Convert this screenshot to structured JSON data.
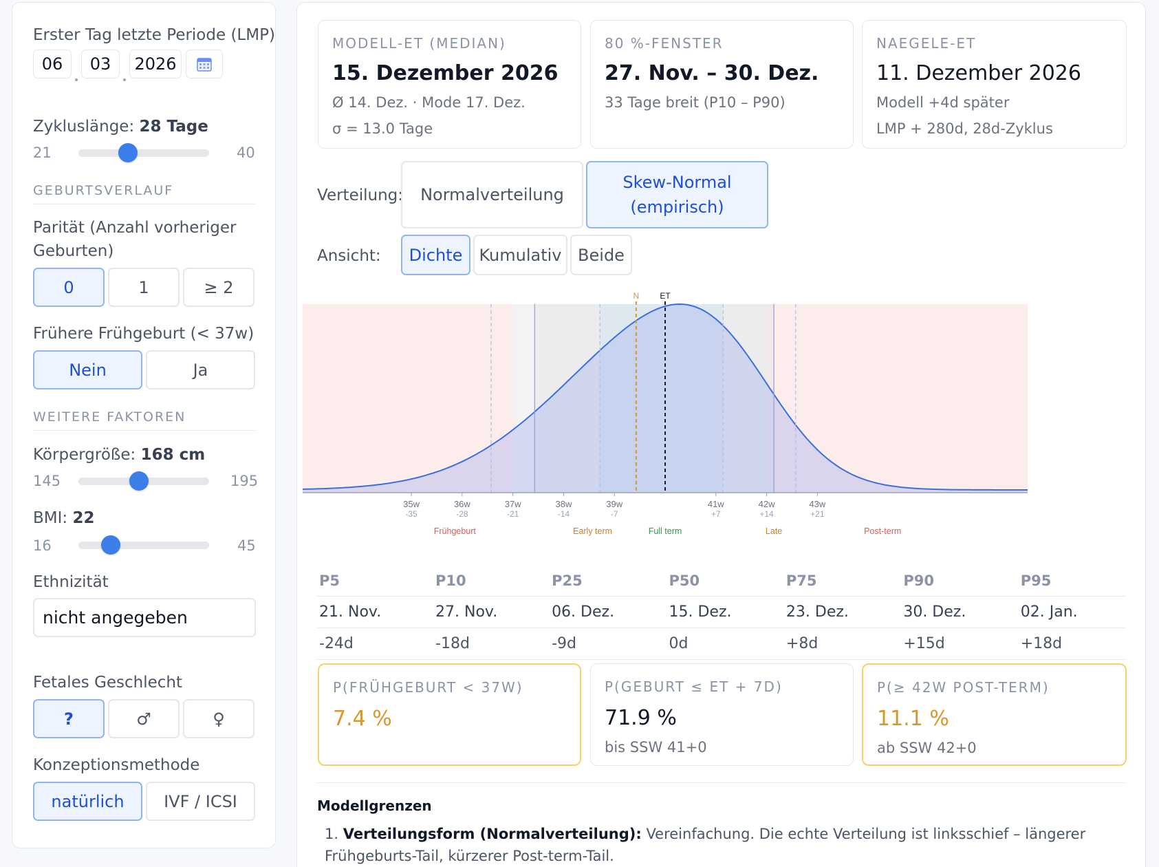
{
  "lmp": {
    "label": "Erster Tag letzte Periode (LMP)",
    "day": "06",
    "month": "03",
    "year": "2026"
  },
  "cycle": {
    "label": "Zykluslänge:",
    "value": "28 Tage",
    "min": "21",
    "max": "40",
    "current": 28
  },
  "section_birth": "GEBURTSVERLAUF",
  "parity": {
    "label": "Parität (Anzahl vorheriger Geburten)",
    "options": [
      "0",
      "1",
      "≥ 2"
    ],
    "selected": 0
  },
  "preterm_history": {
    "label": "Frühere Frühgeburt (< 37w)",
    "options": [
      "Nein",
      "Ja"
    ],
    "selected": 0
  },
  "section_factors": "WEITERE FAKTOREN",
  "height": {
    "label": "Körpergröße:",
    "value": "168 cm",
    "min": "145",
    "max": "195",
    "current": 168
  },
  "bmi": {
    "label": "BMI:",
    "value": "22",
    "min": "16",
    "max": "45",
    "current": 22
  },
  "ethnicity": {
    "label": "Ethnizität",
    "value": "nicht angegeben"
  },
  "fetal_sex": {
    "label": "Fetales Geschlecht",
    "options": [
      "?",
      "♂",
      "♀"
    ],
    "selected": 0
  },
  "conception": {
    "label": "Konzeptionsmethode",
    "options": [
      "natürlich",
      "IVF / ICSI"
    ],
    "selected": 0
  },
  "cards": {
    "model": {
      "caption": "MODELL-ET (MEDIAN)",
      "value": "15. Dezember 2026",
      "sub1": "Ø 14. Dez. · Mode 17. Dez.",
      "sub2": "σ = 13.0 Tage"
    },
    "window": {
      "caption": "80 %-FENSTER",
      "value": "27. Nov. – 30. Dez.",
      "sub1": "33 Tage breit (P10 – P90)"
    },
    "naegele": {
      "caption": "NAEGELE-ET",
      "value": "11. Dezember 2026",
      "sub1": "Modell +4d später",
      "sub2": "LMP + 280d, 28d-Zyklus"
    }
  },
  "distribution": {
    "label": "Verteilung:",
    "options": [
      "Normalverteilung",
      "Skew-Normal (empirisch)"
    ],
    "selected": 1
  },
  "view": {
    "label": "Ansicht:",
    "options": [
      "Dichte",
      "Kumulativ",
      "Beide"
    ],
    "selected": 0
  },
  "chart_data": {
    "type": "area",
    "x_unit": "Tage relativ zum ET",
    "xlim": [
      -50,
      50
    ],
    "ticks": [
      {
        "x": -35,
        "week": "35w",
        "offset": "-35"
      },
      {
        "x": -28,
        "week": "36w",
        "offset": "-28"
      },
      {
        "x": -21,
        "week": "37w",
        "offset": "-21"
      },
      {
        "x": -14,
        "week": "38w",
        "offset": "-14"
      },
      {
        "x": -7,
        "week": "39w",
        "offset": "-7"
      },
      {
        "x": 7,
        "week": "41w",
        "offset": "+7"
      },
      {
        "x": 14,
        "week": "42w",
        "offset": "+14"
      },
      {
        "x": 21,
        "week": "43w",
        "offset": "+21"
      }
    ],
    "zones": [
      {
        "label": "Frühgeburt",
        "from": -50,
        "to": -21,
        "color": "#fdecec",
        "label_color": "#e05a5a"
      },
      {
        "label": "Early term",
        "from": -21,
        "to": -7,
        "color": "#f3f3f3",
        "label_color": "#c9812a"
      },
      {
        "label": "Full term",
        "from": -7,
        "to": 7,
        "color": "#eaf4f0",
        "label_color": "#2e9a45"
      },
      {
        "label": "Late",
        "from": 7,
        "to": 14,
        "color": "#f3f3f3",
        "label_color": "#c9812a"
      },
      {
        "label": "Post-term",
        "from": 14,
        "to": 50,
        "color": "#fdecec",
        "label_color": "#e05a5a"
      }
    ],
    "density": {
      "mean_shift": 2,
      "sigma": 13,
      "skew": -0.4
    },
    "markers": [
      {
        "label": "N",
        "x": -4,
        "color": "#d9962a"
      },
      {
        "label": "ET",
        "x": 0,
        "color": "#111827"
      }
    ],
    "percentile_lines": [
      -24,
      -18,
      -9,
      8,
      15,
      18
    ],
    "band_inner": [
      -9,
      8
    ],
    "band_outer": [
      -18,
      15
    ]
  },
  "percentiles": {
    "headers": [
      "P5",
      "P10",
      "P25",
      "P50",
      "P75",
      "P90",
      "P95"
    ],
    "dates": [
      "21. Nov.",
      "27. Nov.",
      "06. Dez.",
      "15. Dez.",
      "23. Dez.",
      "30. Dez.",
      "02. Jan."
    ],
    "days": [
      "-24d",
      "-18d",
      "-9d",
      "0d",
      "+8d",
      "+15d",
      "+18d"
    ]
  },
  "probabilities": {
    "preterm": {
      "caption": "P(FRÜHGEBURT < 37W)",
      "value": "7.4 %"
    },
    "by_et7": {
      "caption": "P(GEBURT ≤ ET + 7D)",
      "value": "71.9 %",
      "sub": "bis SSW 41+0"
    },
    "postterm": {
      "caption": "P(≥ 42W POST-TERM)",
      "value": "11.1 %",
      "sub": "ab SSW 42+0"
    }
  },
  "limits": {
    "title": "Modellgrenzen",
    "item1_title": "Verteilungsform (Normalverteilung):",
    "item1_text": "Vereinfachung. Die echte Verteilung ist linksschief – längerer Frühgeburts-Tail, kürzerer Post-term-Tail."
  },
  "colors": {
    "accent": "#3b7de9",
    "warn": "#f5d36a",
    "orange": "#d9962a"
  }
}
